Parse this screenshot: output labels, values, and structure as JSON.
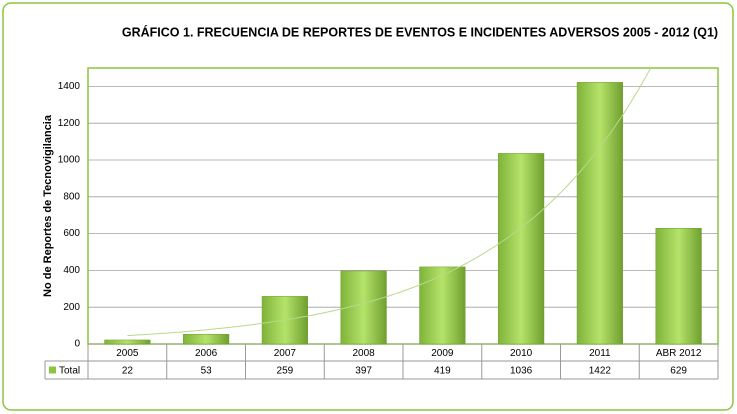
{
  "chart_data": {
    "type": "bar",
    "title": "GRÁFICO 1. FRECUENCIA DE REPORTES DE  EVENTOS E INCIDENTES ADVERSOS 2005 - 2012 (Q1)",
    "y_label": "No de Reportes de Tecnovigilancia",
    "categories": [
      "2005",
      "2006",
      "2007",
      "2008",
      "2009",
      "2010",
      "2011",
      "ABR 2012"
    ],
    "series": [
      {
        "name": "Total",
        "color": "#8cc63f",
        "values": [
          22,
          53,
          259,
          397,
          419,
          1036,
          1422,
          629
        ]
      }
    ],
    "ylim": [
      0,
      1500
    ],
    "yticks": [
      0,
      200,
      400,
      600,
      800,
      1000,
      1200,
      1400
    ],
    "grid": true,
    "trendline": "exponential",
    "data_table": true
  }
}
